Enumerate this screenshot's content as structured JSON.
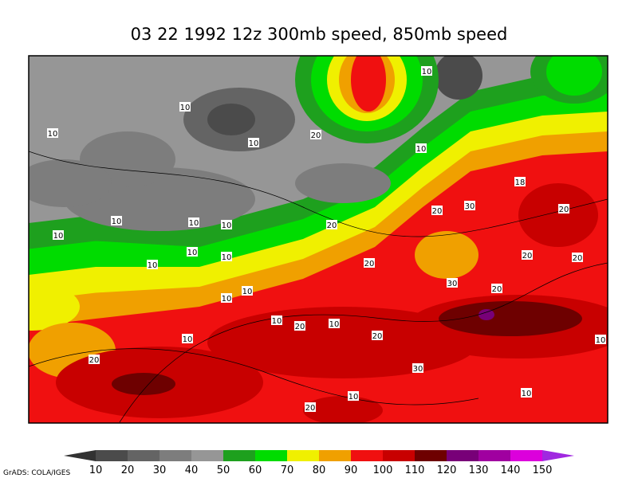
{
  "title": "03 22 1992 12z 300mb speed, 850mb speed",
  "colorbar": {
    "labels": [
      10,
      20,
      30,
      40,
      50,
      60,
      70,
      80,
      90,
      100,
      110,
      120,
      130,
      140,
      150
    ],
    "colors": [
      "#323232",
      "#4b4b4b",
      "#646464",
      "#7d7d7d",
      "#969696",
      "#1ea01e",
      "#00dc00",
      "#f0f000",
      "#f0a000",
      "#f01010",
      "#c80000",
      "#6e0000",
      "#780078",
      "#a000a0",
      "#dc00dc",
      "#a028e0"
    ]
  },
  "contour_labels": [
    10,
    10,
    10,
    20,
    10,
    10,
    18,
    20,
    30,
    20,
    10,
    10,
    10,
    20,
    10,
    10,
    10,
    20,
    20,
    20,
    10,
    30,
    20,
    10,
    10,
    10,
    20,
    10,
    20,
    10,
    10,
    20,
    30,
    10,
    10,
    20
  ],
  "credit": "GrADS: COLA/IGES"
}
